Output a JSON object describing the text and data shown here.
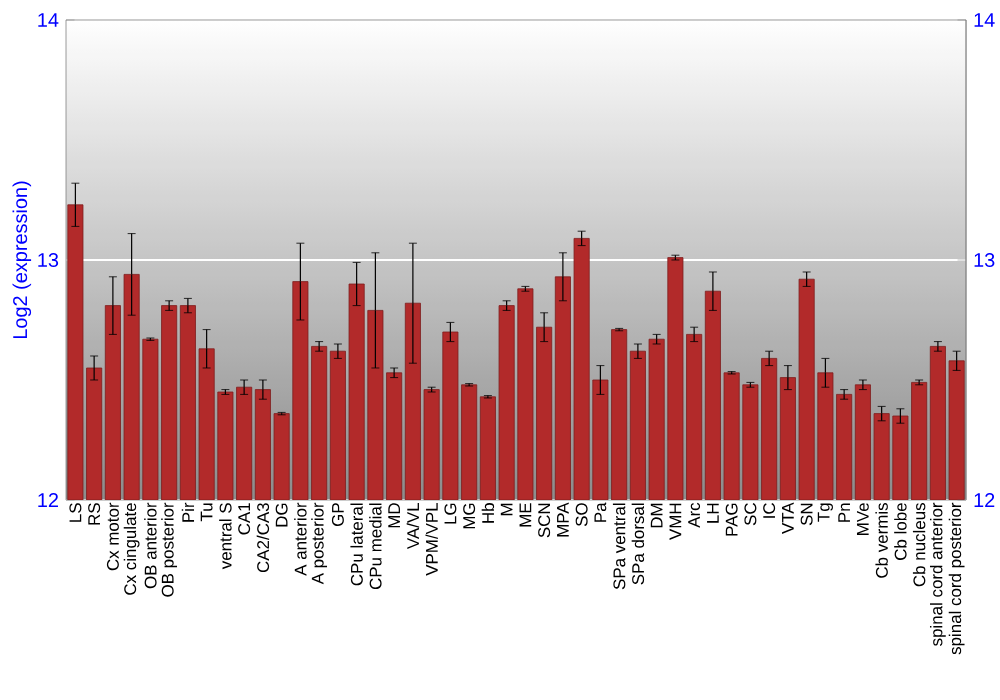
{
  "chart_data": {
    "type": "bar",
    "ylabel": "Log2 (expression)",
    "categories": [
      "LS",
      "RS",
      "Cx motor",
      "Cx cingulate",
      "OB anterior",
      "OB posterior",
      "Pir",
      "Tu",
      "ventral S",
      "CA1",
      "CA2/CA3",
      "DG",
      "A anterior",
      "A posterior",
      "GP",
      "CPu lateral",
      "CPu medial",
      "MD",
      "VA/VL",
      "VPM/VPL",
      "LG",
      "MG",
      "Hb",
      "M",
      "ME",
      "SCN",
      "MPA",
      "SO",
      "Pa",
      "SPa ventral",
      "SPa dorsal",
      "DM",
      "VMH",
      "Arc",
      "LH",
      "PAG",
      "SC",
      "IC",
      "VTA",
      "SN",
      "Tg",
      "Pn",
      "MVe",
      "Cb vermis",
      "Cb lobe",
      "Cb nucleus",
      "spinal cord anterior",
      "spinal cord posterior"
    ],
    "values": [
      13.23,
      12.55,
      12.81,
      12.94,
      12.67,
      12.81,
      12.81,
      12.63,
      12.45,
      12.47,
      12.46,
      12.36,
      12.91,
      12.64,
      12.62,
      12.9,
      12.79,
      12.53,
      12.82,
      12.46,
      12.7,
      12.48,
      12.43,
      12.81,
      12.88,
      12.72,
      12.93,
      13.09,
      12.5,
      12.71,
      12.62,
      12.67,
      13.01,
      12.69,
      12.87,
      12.53,
      12.48,
      12.59,
      12.51,
      12.92,
      12.53,
      12.44,
      12.48,
      12.36,
      12.35,
      12.49,
      12.64,
      12.58
    ],
    "errors": [
      0.09,
      0.05,
      0.12,
      0.17,
      0.005,
      0.02,
      0.03,
      0.08,
      0.01,
      0.03,
      0.04,
      0.005,
      0.16,
      0.02,
      0.03,
      0.09,
      0.24,
      0.02,
      0.25,
      0.01,
      0.04,
      0.005,
      0.005,
      0.02,
      0.01,
      0.06,
      0.1,
      0.03,
      0.06,
      0.005,
      0.03,
      0.02,
      0.01,
      0.03,
      0.08,
      0.005,
      0.01,
      0.03,
      0.05,
      0.03,
      0.06,
      0.02,
      0.02,
      0.03,
      0.03,
      0.01,
      0.02,
      0.04
    ],
    "color": "#b22a2a",
    "ylim": [
      12,
      14
    ],
    "yticks": [
      12,
      13,
      14
    ],
    "y2lim": [
      12,
      14
    ],
    "y2ticks": [
      12,
      13,
      14
    ],
    "grid": "y"
  }
}
